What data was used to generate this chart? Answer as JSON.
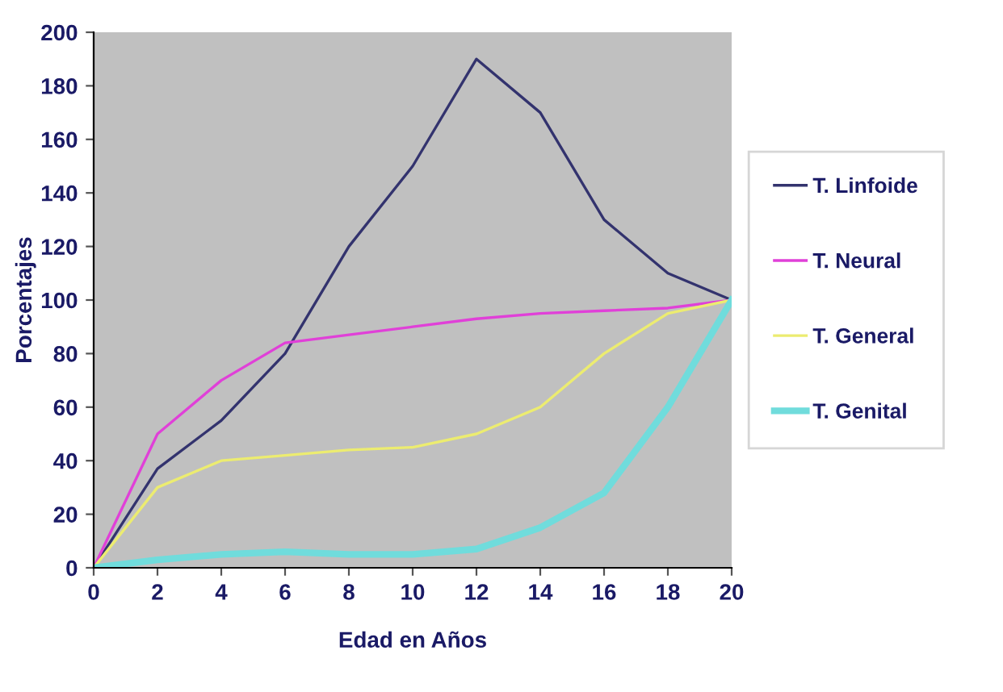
{
  "chart_data": {
    "type": "line",
    "xlabel": "Edad en Años",
    "ylabel": "Porcentajes",
    "x": [
      0,
      2,
      4,
      6,
      8,
      10,
      12,
      14,
      16,
      18,
      20
    ],
    "series": [
      {
        "name": "T. Linfoide",
        "color": "#33336e",
        "values": [
          0,
          37,
          55,
          80,
          120,
          150,
          190,
          170,
          130,
          110,
          100
        ]
      },
      {
        "name": "T. Neural",
        "color": "#e040d8",
        "values": [
          0,
          50,
          70,
          84,
          87,
          90,
          93,
          95,
          96,
          97,
          100
        ]
      },
      {
        "name": "T. General",
        "color": "#ecec70",
        "values": [
          0,
          30,
          40,
          42,
          44,
          45,
          50,
          60,
          80,
          95,
          100
        ]
      },
      {
        "name": "T. Genital",
        "color": "#70dcdc",
        "values": [
          0,
          3,
          5,
          6,
          5,
          5,
          7,
          15,
          28,
          60,
          100
        ]
      }
    ],
    "xlim": [
      0,
      20
    ],
    "xticks": [
      0,
      2,
      4,
      6,
      8,
      10,
      12,
      14,
      16,
      18,
      20
    ],
    "ylim": [
      0,
      200
    ],
    "yticks": [
      0,
      20,
      40,
      60,
      80,
      100,
      120,
      140,
      160,
      180,
      200
    ],
    "grid": false,
    "legend": "right",
    "marker": "none",
    "line_style": "solid"
  }
}
